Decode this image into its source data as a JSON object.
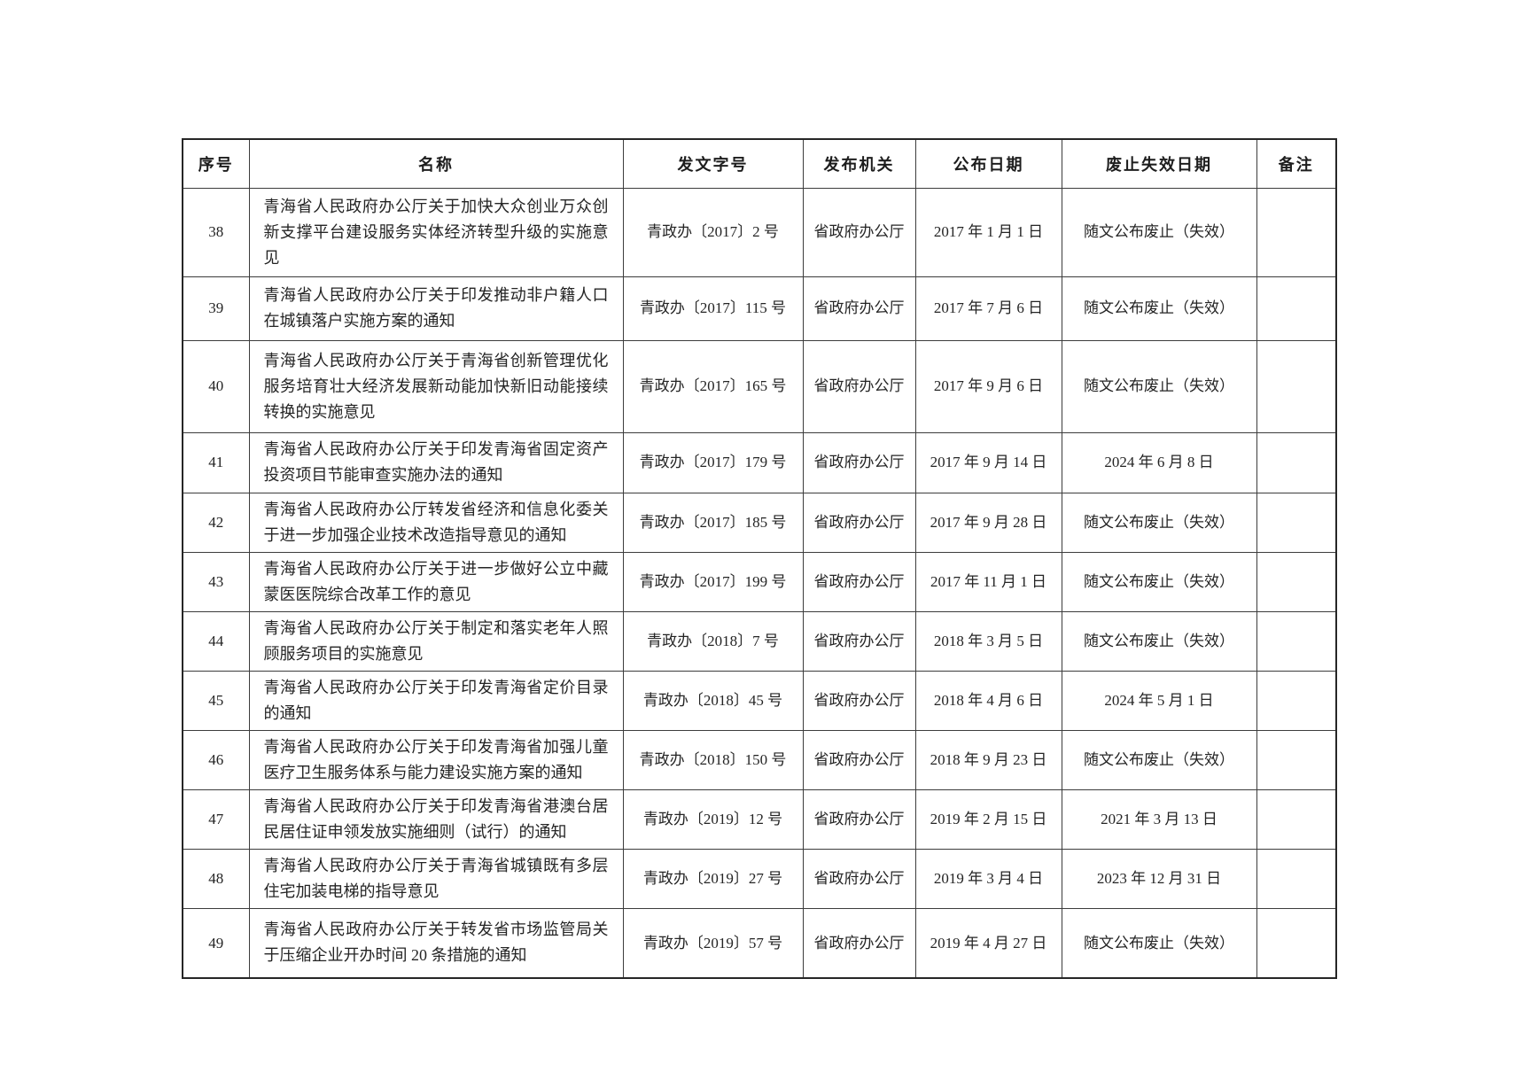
{
  "colors": {
    "page-bg": "#ffffff",
    "line": "#3c3c3c",
    "line-strong": "#262626",
    "ink": "#242424",
    "ink-head": "#1d1d1d"
  },
  "table": {
    "headers": [
      "序号",
      "名称",
      "发文字号",
      "发布机关",
      "公布日期",
      "废止失效日期",
      "备注"
    ],
    "rows": [
      {
        "seq": "38",
        "name": "青海省人民政府办公厅关于加快大众创业万众创新支撑平台建设服务实体经济转型升级的实施意见",
        "doc_no": "青政办〔2017〕2 号",
        "agency": "省政府办公厅",
        "publish_date": "2017 年 1 月 1 日",
        "repeal_date": "随文公布废止（失效）",
        "remark": ""
      },
      {
        "seq": "39",
        "name": "青海省人民政府办公厅关于印发推动非户籍人口在城镇落户实施方案的通知",
        "doc_no": "青政办〔2017〕115 号",
        "agency": "省政府办公厅",
        "publish_date": "2017 年 7 月 6 日",
        "repeal_date": "随文公布废止（失效）",
        "remark": ""
      },
      {
        "seq": "40",
        "name": "青海省人民政府办公厅关于青海省创新管理优化服务培育壮大经济发展新动能加快新旧动能接续转换的实施意见",
        "doc_no": "青政办〔2017〕165 号",
        "agency": "省政府办公厅",
        "publish_date": "2017 年 9 月 6 日",
        "repeal_date": "随文公布废止（失效）",
        "remark": ""
      },
      {
        "seq": "41",
        "name": "青海省人民政府办公厅关于印发青海省固定资产投资项目节能审查实施办法的通知",
        "doc_no": "青政办〔2017〕179 号",
        "agency": "省政府办公厅",
        "publish_date": "2017 年 9 月 14 日",
        "repeal_date": "2024 年 6 月 8 日",
        "remark": ""
      },
      {
        "seq": "42",
        "name": "青海省人民政府办公厅转发省经济和信息化委关于进一步加强企业技术改造指导意见的通知",
        "doc_no": "青政办〔2017〕185 号",
        "agency": "省政府办公厅",
        "publish_date": "2017 年 9 月 28 日",
        "repeal_date": "随文公布废止（失效）",
        "remark": ""
      },
      {
        "seq": "43",
        "name": "青海省人民政府办公厅关于进一步做好公立中藏蒙医医院综合改革工作的意见",
        "doc_no": "青政办〔2017〕199 号",
        "agency": "省政府办公厅",
        "publish_date": "2017 年 11 月 1 日",
        "repeal_date": "随文公布废止（失效）",
        "remark": ""
      },
      {
        "seq": "44",
        "name": "青海省人民政府办公厅关于制定和落实老年人照顾服务项目的实施意见",
        "doc_no": "青政办〔2018〕7 号",
        "agency": "省政府办公厅",
        "publish_date": "2018 年 3 月 5 日",
        "repeal_date": "随文公布废止（失效）",
        "remark": ""
      },
      {
        "seq": "45",
        "name": "青海省人民政府办公厅关于印发青海省定价目录的通知",
        "doc_no": "青政办〔2018〕45 号",
        "agency": "省政府办公厅",
        "publish_date": "2018 年 4 月 6 日",
        "repeal_date": "2024 年 5 月 1 日",
        "remark": ""
      },
      {
        "seq": "46",
        "name": "青海省人民政府办公厅关于印发青海省加强儿童医疗卫生服务体系与能力建设实施方案的通知",
        "doc_no": "青政办〔2018〕150 号",
        "agency": "省政府办公厅",
        "publish_date": "2018 年 9 月 23 日",
        "repeal_date": "随文公布废止（失效）",
        "remark": ""
      },
      {
        "seq": "47",
        "name": "青海省人民政府办公厅关于印发青海省港澳台居民居住证申领发放实施细则（试行）的通知",
        "doc_no": "青政办〔2019〕12 号",
        "agency": "省政府办公厅",
        "publish_date": "2019 年 2 月 15 日",
        "repeal_date": "2021 年 3 月 13 日",
        "remark": ""
      },
      {
        "seq": "48",
        "name": "青海省人民政府办公厅关于青海省城镇既有多层住宅加装电梯的指导意见",
        "doc_no": "青政办〔2019〕27 号",
        "agency": "省政府办公厅",
        "publish_date": "2019 年 3 月 4 日",
        "repeal_date": "2023 年 12 月 31 日",
        "remark": ""
      },
      {
        "seq": "49",
        "name": "青海省人民政府办公厅关于转发省市场监管局关于压缩企业开办时间 20 条措施的通知",
        "doc_no": "青政办〔2019〕57 号",
        "agency": "省政府办公厅",
        "publish_date": "2019 年 4 月 27 日",
        "repeal_date": "随文公布废止（失效）",
        "remark": ""
      }
    ]
  }
}
